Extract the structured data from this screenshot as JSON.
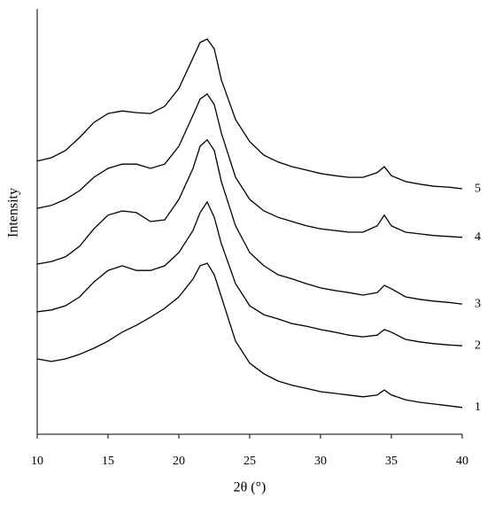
{
  "chart_data": {
    "type": "line",
    "x_label": "2θ (°)",
    "y_label": "Intensity",
    "x": [
      10,
      11,
      12,
      13,
      14,
      15,
      16,
      17,
      18,
      19,
      20,
      21,
      21.5,
      22,
      22.5,
      23,
      24,
      25,
      26,
      27,
      28,
      29,
      30,
      31,
      32,
      33,
      34,
      34.5,
      35,
      36,
      37,
      38,
      39,
      40
    ],
    "xlim": [
      10,
      40
    ],
    "xticks": [
      10,
      15,
      20,
      25,
      30,
      35,
      40
    ],
    "ylim": [
      0,
      100
    ],
    "grid": false,
    "series": [
      {
        "name": "1",
        "color": "#000000",
        "values": [
          17.7,
          17.1,
          17.7,
          18.8,
          20.2,
          21.9,
          24.0,
          25.6,
          27.5,
          29.6,
          32.3,
          36.5,
          39.6,
          40.2,
          37.5,
          32.3,
          21.9,
          16.7,
          14.2,
          12.5,
          11.5,
          10.8,
          10.0,
          9.6,
          9.2,
          8.8,
          9.2,
          10.4,
          9.2,
          8.1,
          7.5,
          7.1,
          6.7,
          6.3
        ]
      },
      {
        "name": "2",
        "color": "#000000",
        "values": [
          28.8,
          29.2,
          30.2,
          32.3,
          35.8,
          38.5,
          39.6,
          38.5,
          38.5,
          39.6,
          42.7,
          47.9,
          52.1,
          54.6,
          51.0,
          44.8,
          35.4,
          30.2,
          28.1,
          27.1,
          26.0,
          25.4,
          24.6,
          24.0,
          23.3,
          22.9,
          23.3,
          24.6,
          24.0,
          22.3,
          21.7,
          21.3,
          21.0,
          20.8
        ]
      },
      {
        "name": "3",
        "color": "#000000",
        "values": [
          40.0,
          40.6,
          41.7,
          44.2,
          48.3,
          51.5,
          52.5,
          52.1,
          50.0,
          50.4,
          55.2,
          62.5,
          67.7,
          69.2,
          66.7,
          59.4,
          49.0,
          42.7,
          39.6,
          37.5,
          36.5,
          35.4,
          34.4,
          33.8,
          33.3,
          32.7,
          33.3,
          35.0,
          34.2,
          32.3,
          31.7,
          31.3,
          31.0,
          30.6
        ]
      },
      {
        "name": "4",
        "color": "#000000",
        "values": [
          53.1,
          53.8,
          55.2,
          57.3,
          60.4,
          62.5,
          63.5,
          63.5,
          62.5,
          63.5,
          67.7,
          75.0,
          78.8,
          80.0,
          77.5,
          70.8,
          60.4,
          55.2,
          52.5,
          51.0,
          50.0,
          49.0,
          48.3,
          47.9,
          47.5,
          47.5,
          49.0,
          51.5,
          49.0,
          47.5,
          47.1,
          46.7,
          46.5,
          46.3
        ]
      },
      {
        "name": "5",
        "color": "#000000",
        "values": [
          64.2,
          65.0,
          66.7,
          69.8,
          73.3,
          75.4,
          76.0,
          75.6,
          75.4,
          77.1,
          81.3,
          88.5,
          92.1,
          92.9,
          90.6,
          83.3,
          74.0,
          68.8,
          65.6,
          64.0,
          62.9,
          62.1,
          61.3,
          60.8,
          60.4,
          60.4,
          61.5,
          62.9,
          60.8,
          59.4,
          58.8,
          58.3,
          58.1,
          57.7
        ]
      }
    ]
  }
}
